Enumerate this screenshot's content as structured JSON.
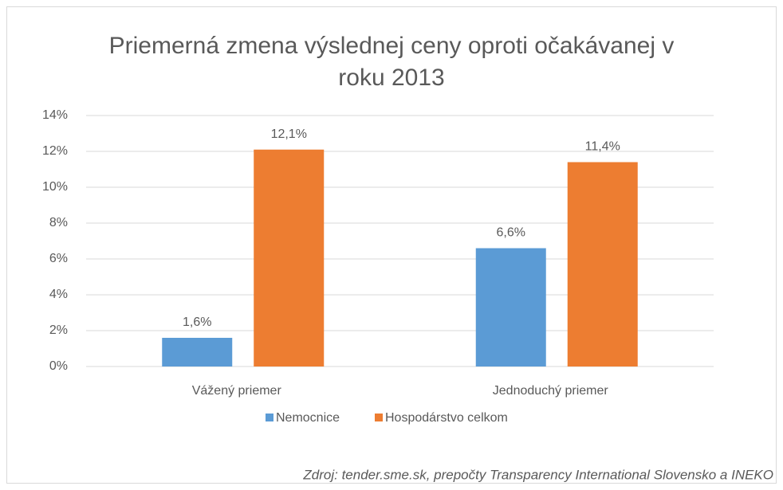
{
  "chart_data": {
    "type": "bar",
    "title": "Priemerná zmena výslednej ceny oproti očakávanej v roku 2013",
    "categories": [
      "Vážený priemer",
      "Jednoduchý priemer"
    ],
    "series": [
      {
        "name": "Nemocnice",
        "color": "#5b9bd5",
        "values": [
          1.6,
          6.6
        ],
        "value_labels": [
          "1,6%",
          "6,6%"
        ]
      },
      {
        "name": "Hospodárstvo celkom",
        "color": "#ed7d31",
        "values": [
          12.1,
          11.4
        ],
        "value_labels": [
          "12,1%",
          "11,4%"
        ]
      }
    ],
    "ylim": [
      0,
      14
    ],
    "yticks": [
      {
        "value": 0,
        "label": "0%"
      },
      {
        "value": 2,
        "label": "2%"
      },
      {
        "value": 4,
        "label": "4%"
      },
      {
        "value": 6,
        "label": "6%"
      },
      {
        "value": 8,
        "label": "8%"
      },
      {
        "value": 10,
        "label": "10%"
      },
      {
        "value": 12,
        "label": "12%"
      },
      {
        "value": 14,
        "label": "14%"
      }
    ],
    "grid": true,
    "legend": "bottom",
    "source": "Zdroj: tender.sme.sk, prepočty Transparency International Slovensko a INEKO"
  }
}
